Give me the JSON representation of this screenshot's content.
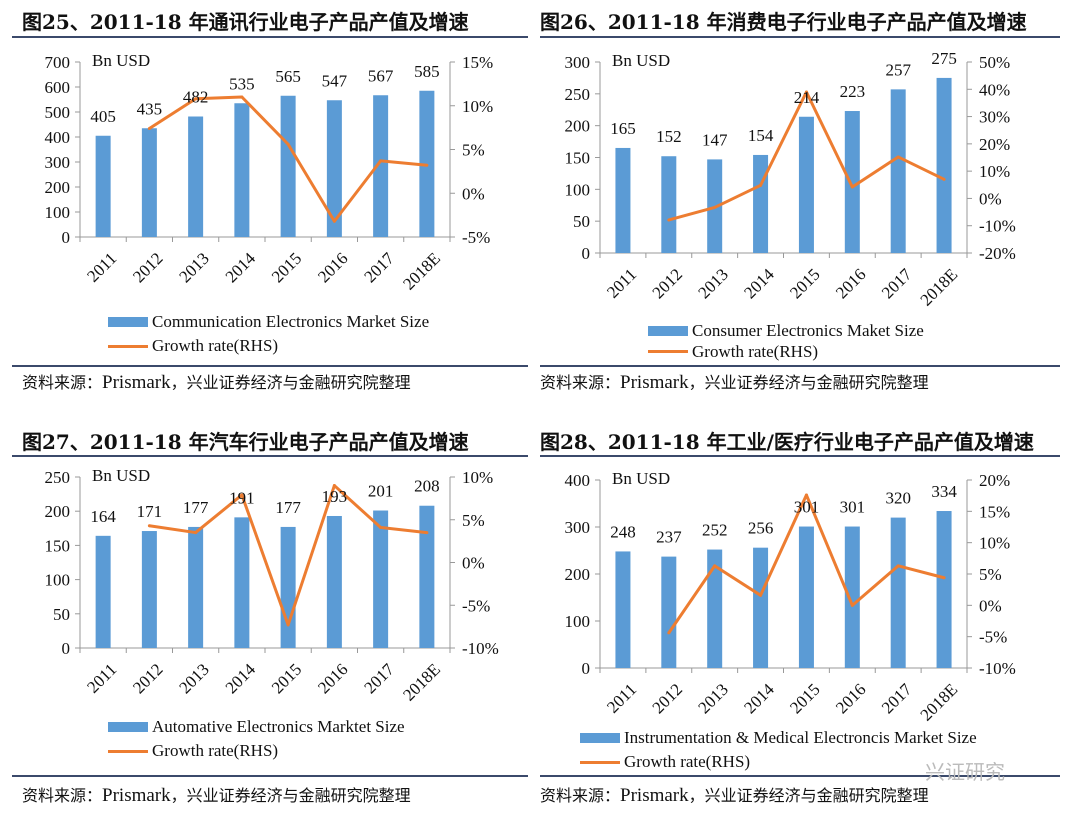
{
  "source_prefix": "资料来源：",
  "source_name": "Prismark",
  "source_suffix": "，兴业证券经济与金融研究院整理",
  "watermark": "兴证研究",
  "colors": {
    "bar": "#5B9BD5",
    "line": "#ED7D31",
    "rule": "#3b4a6b"
  },
  "chart_data": [
    {
      "type": "bar+line",
      "title": "图25、2011-18 年通讯行业电子产品产值及增速",
      "unit_label": "Bn USD",
      "categories": [
        "2011",
        "2012",
        "2013",
        "2014",
        "2015",
        "2016",
        "2017",
        "2018E"
      ],
      "bar_series": {
        "name": "Communication Electronics Market Size",
        "values": [
          405,
          435,
          482,
          535,
          565,
          547,
          567,
          585
        ]
      },
      "line_series": {
        "name": "Growth rate(RHS)",
        "values": [
          null,
          7.4,
          10.8,
          11.0,
          5.6,
          -3.2,
          3.7,
          3.2
        ]
      },
      "ylim": [
        0,
        700
      ],
      "yticks": [
        0,
        100,
        200,
        300,
        400,
        500,
        600,
        700
      ],
      "y2lim": [
        -5,
        15
      ],
      "y2ticks": [
        -5,
        0,
        5,
        10,
        15
      ],
      "y2suffix": "%",
      "legend": "bottom"
    },
    {
      "type": "bar+line",
      "title": "图26、2011-18 年消费电子行业电子产品产值及增速",
      "unit_label": "Bn USD",
      "categories": [
        "2011",
        "2012",
        "2013",
        "2014",
        "2015",
        "2016",
        "2017",
        "2018E"
      ],
      "bar_series": {
        "name": "Consumer Electronics Maket Size",
        "values": [
          165,
          152,
          147,
          154,
          214,
          223,
          257,
          275
        ]
      },
      "line_series": {
        "name": "Growth rate(RHS)",
        "values": [
          null,
          -7.9,
          -3.3,
          4.8,
          39.0,
          4.2,
          15.2,
          7.0
        ]
      },
      "ylim": [
        0,
        300
      ],
      "yticks": [
        0,
        50,
        100,
        150,
        200,
        250,
        300
      ],
      "y2lim": [
        -20,
        50
      ],
      "y2ticks": [
        -20,
        -10,
        0,
        10,
        20,
        30,
        40,
        50
      ],
      "y2suffix": "%",
      "legend": "bottom"
    },
    {
      "type": "bar+line",
      "title": "图27、2011-18 年汽车行业电子产品产值及增速",
      "unit_label": "Bn USD",
      "categories": [
        "2011",
        "2012",
        "2013",
        "2014",
        "2015",
        "2016",
        "2017",
        "2018E"
      ],
      "bar_series": {
        "name": "Automative Electronics Marktet Size",
        "values": [
          164,
          171,
          177,
          191,
          177,
          193,
          201,
          208
        ]
      },
      "line_series": {
        "name": "Growth rate(RHS)",
        "values": [
          null,
          4.3,
          3.5,
          7.9,
          -7.3,
          9.0,
          4.1,
          3.5
        ]
      },
      "ylim": [
        0,
        250
      ],
      "yticks": [
        0,
        50,
        100,
        150,
        200,
        250
      ],
      "y2lim": [
        -10,
        10
      ],
      "y2ticks": [
        -10,
        -5,
        0,
        5,
        10
      ],
      "y2suffix": "%",
      "legend": "bottom"
    },
    {
      "type": "bar+line",
      "title": "图28、2011-18 年工业/医疗行业电子产品产值及增速",
      "unit_label": "Bn USD",
      "categories": [
        "2011",
        "2012",
        "2013",
        "2014",
        "2015",
        "2016",
        "2017",
        "2018E"
      ],
      "bar_series": {
        "name": "Instrumentation & Medical Electroncis Market Size",
        "values": [
          248,
          237,
          252,
          256,
          301,
          301,
          320,
          334
        ]
      },
      "line_series": {
        "name": "Growth rate(RHS)",
        "values": [
          null,
          -4.4,
          6.3,
          1.6,
          17.6,
          0.0,
          6.3,
          4.4
        ]
      },
      "ylim": [
        0,
        400
      ],
      "yticks": [
        0,
        100,
        200,
        300,
        400
      ],
      "y2lim": [
        -10,
        20
      ],
      "y2ticks": [
        -10,
        -5,
        0,
        5,
        10,
        15,
        20
      ],
      "y2suffix": "%",
      "legend": "bottom"
    }
  ]
}
